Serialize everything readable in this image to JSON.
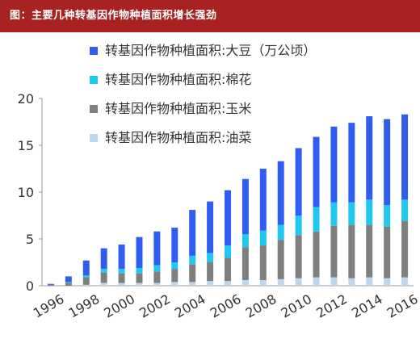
{
  "header": {
    "title": "图：主要几种转基因作物种植面积增长强劲"
  },
  "chart_data": {
    "type": "bar",
    "stacked": true,
    "title": "图：主要几种转基因作物种植面积增长强劲",
    "categories": [
      "1996",
      "1997",
      "1998",
      "1999",
      "2000",
      "2001",
      "2002",
      "2003",
      "2004",
      "2005",
      "2006",
      "2007",
      "2008",
      "2009",
      "2010",
      "2011",
      "2012",
      "2013",
      "2014",
      "2015",
      "2016"
    ],
    "x_tick_labels": [
      "1996",
      "1998",
      "2000",
      "2002",
      "2004",
      "2006",
      "2008",
      "2010",
      "2012",
      "2014",
      "2016"
    ],
    "ylim": [
      0,
      20
    ],
    "y_ticks": [
      0,
      5,
      10,
      15,
      20
    ],
    "legend_position": "top-right",
    "grid": false,
    "series": [
      {
        "name": "转基因作物种植面积:油菜",
        "color": "#bcd6ee",
        "values": [
          0.0,
          0.0,
          0.1,
          0.3,
          0.3,
          0.3,
          0.3,
          0.4,
          0.4,
          0.5,
          0.5,
          0.6,
          0.6,
          0.7,
          0.8,
          0.9,
          0.9,
          0.8,
          0.9,
          0.8,
          0.9
        ]
      },
      {
        "name": "转基因作物种植面积:玉米",
        "color": "#7f7f7f",
        "values": [
          0.1,
          0.3,
          0.8,
          1.1,
          1.0,
          1.0,
          1.2,
          1.4,
          1.9,
          2.0,
          2.5,
          3.5,
          3.7,
          4.2,
          4.6,
          4.9,
          5.5,
          5.7,
          5.6,
          5.5,
          6.0
        ]
      },
      {
        "name": "转基因作物种植面积:棉花",
        "color": "#1ec8ee",
        "values": [
          0.0,
          0.1,
          0.2,
          0.4,
          0.5,
          0.6,
          0.7,
          0.7,
          0.9,
          1.0,
          1.3,
          1.4,
          1.6,
          1.6,
          2.1,
          2.6,
          2.5,
          2.4,
          2.7,
          2.3,
          2.3
        ]
      },
      {
        "name": "转基因作物种植面积:大豆（万公顷）",
        "color": "#2e5df0",
        "values": [
          0.1,
          0.6,
          1.6,
          2.2,
          2.6,
          3.3,
          3.6,
          3.7,
          4.9,
          5.5,
          5.9,
          5.9,
          6.6,
          6.8,
          7.2,
          7.5,
          8.1,
          8.5,
          8.9,
          9.2,
          9.1
        ]
      }
    ],
    "legend_order": [
      "转基因作物种植面积:大豆（万公顷）",
      "转基因作物种植面积:棉花",
      "转基因作物种植面积:玉米",
      "转基因作物种植面积:油菜"
    ]
  }
}
